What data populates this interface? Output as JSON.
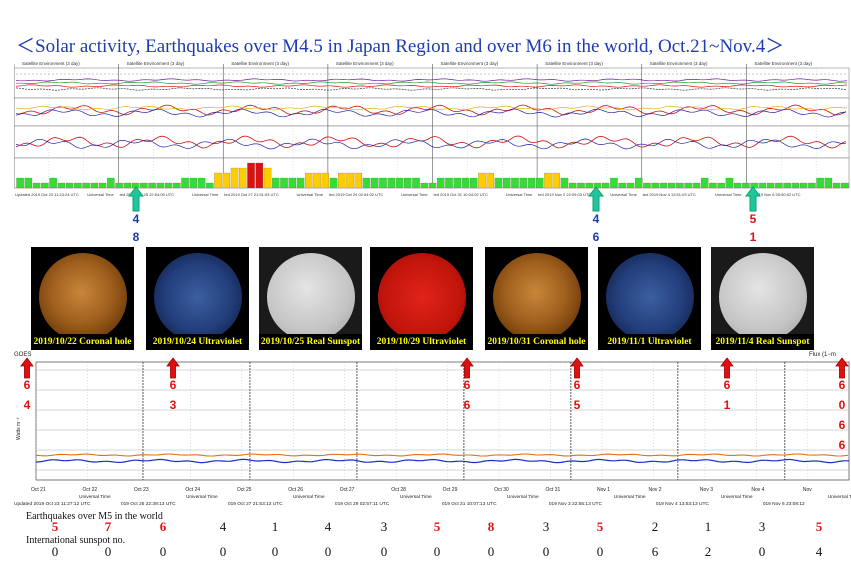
{
  "title": "＜Solar activity, Earthquakes over M4.5 in Japan Region and over M6 in the world, Oct.21~Nov.4＞",
  "top_panels": {
    "panel_header": "Satellite Environment (3 day)",
    "footers": [
      {
        "updated": "Updated 2019 Oct 23 11:23:24 UTC",
        "axis": "Universal Time"
      },
      {
        "updated": "ted 2019 Oct 25 22:54:09 UTC",
        "axis": "Universal Time"
      },
      {
        "updated": "ted 2019 Oct 27 21:51:03 UTC",
        "axis": "Universal Time"
      },
      {
        "updated": "ted 2019 Oct 29 02:54:02 UTC",
        "axis": "Universal Time"
      },
      {
        "updated": "ted 2019 Oct 31 10:04:02 UTC",
        "axis": "Universal Time"
      },
      {
        "updated": "ted 2019 Nov 2 22:09:03 UTC",
        "axis": "Universal Time"
      },
      {
        "updated": "ted 2019 Nov 4 13:51:03 UTC",
        "axis": "Universal Time"
      },
      {
        "updated": "ted 2019 Nov 6 05:50:02 UTC",
        "axis": ""
      }
    ],
    "kp_bar_values": [
      2,
      2,
      1,
      1,
      2,
      1,
      1,
      1,
      1,
      1,
      1,
      2,
      1,
      1,
      1,
      1,
      1,
      1,
      1,
      1,
      2,
      2,
      2,
      1,
      3,
      3,
      4,
      4,
      5,
      5,
      4,
      2,
      2,
      2,
      2,
      3,
      3,
      3,
      2,
      3,
      3,
      3,
      2,
      2,
      2,
      2,
      2,
      2,
      2,
      1,
      1,
      2,
      2,
      2,
      2,
      2,
      3,
      3,
      2,
      2,
      2,
      2,
      2,
      2,
      3,
      3,
      2,
      1,
      1,
      1,
      1,
      1,
      2,
      1,
      1,
      2,
      1,
      1,
      1,
      1,
      1,
      1,
      1,
      2,
      1,
      1,
      2,
      1,
      1,
      1,
      1,
      1,
      1,
      1,
      1,
      1,
      1,
      2,
      2,
      1,
      1
    ],
    "kp_colors": {
      "quiet": "#33dd33",
      "active": "#ffcc00",
      "storm": "#dd1111"
    },
    "arrows": [
      {
        "num1": "4",
        "num2": "8"
      },
      {
        "num1": "4",
        "num2": "6"
      },
      {
        "num1": "5",
        "num2": "1"
      }
    ]
  },
  "thumbnails": [
    {
      "caption": "2019/10/22 Coronal hole",
      "type": "orange"
    },
    {
      "caption": "2019/10/24 Ultraviolet",
      "type": "blue"
    },
    {
      "caption": "2019/10/25 Real Sunspot",
      "type": "gray"
    },
    {
      "caption": "2019/10/29 Ultraviolet",
      "type": "red"
    },
    {
      "caption": "2019/10/31 Coronal hole",
      "type": "orange"
    },
    {
      "caption": "2019/11/1 Ultraviolet",
      "type": "blue"
    },
    {
      "caption": "2019/11/4 Real Sunspot",
      "type": "gray"
    }
  ],
  "goes": {
    "label": "GOES",
    "ylabel": "Watts m⁻²",
    "flux_label": "Flux (1−m",
    "red_markers": [
      {
        "num1": "6",
        "num2": "4"
      },
      {
        "num1": "6",
        "num2": "3"
      },
      {
        "num1": "6",
        "num2": "6"
      },
      {
        "num1": "6",
        "num2": "5"
      },
      {
        "num1": "6",
        "num2": "1"
      },
      {
        "num1": "6",
        "num2": "0",
        "num3": "6",
        "num4": "6"
      }
    ],
    "date_ticks": [
      "Oct 21",
      "Oct 22",
      "Oct 23",
      "Oct 24",
      "Oct 25",
      "Oct 26",
      "Oct 27",
      "Oct 28",
      "Oct 29",
      "Oct 30",
      "Oct 31",
      "Nov 1",
      "Nov 2",
      "Nov 3",
      "Nov 4",
      "Nov"
    ],
    "bottom_updates": [
      "Updated 2019 Oct 23 11:27:12 UTC",
      "019 Oct 25 22:39:13 UTC",
      "019 Oct 27 21:53:13 UTC",
      "019 Oct 29 02:57:11 UTC",
      "019 Oct 31 10:07:13 UTC",
      "019 Nov 3 22:55:13 UTC",
      "019 Nov 4 13:53:13 UTC",
      "019 Nov 6 23:08:12"
    ],
    "axis_label": "Universal Time"
  },
  "chart_data": {
    "type": "table",
    "rows": [
      {
        "name": "Earthquakes over M5 in the world",
        "values": [
          5,
          7,
          6,
          4,
          1,
          4,
          3,
          5,
          8,
          3,
          5,
          2,
          1,
          3,
          5
        ],
        "highlight": [
          true,
          true,
          true,
          false,
          false,
          false,
          false,
          true,
          true,
          false,
          true,
          false,
          false,
          false,
          true
        ]
      },
      {
        "name": "International sunspot no.",
        "values": [
          0,
          0,
          0,
          0,
          0,
          0,
          0,
          0,
          0,
          0,
          0,
          6,
          2,
          0,
          4
        ]
      }
    ]
  }
}
